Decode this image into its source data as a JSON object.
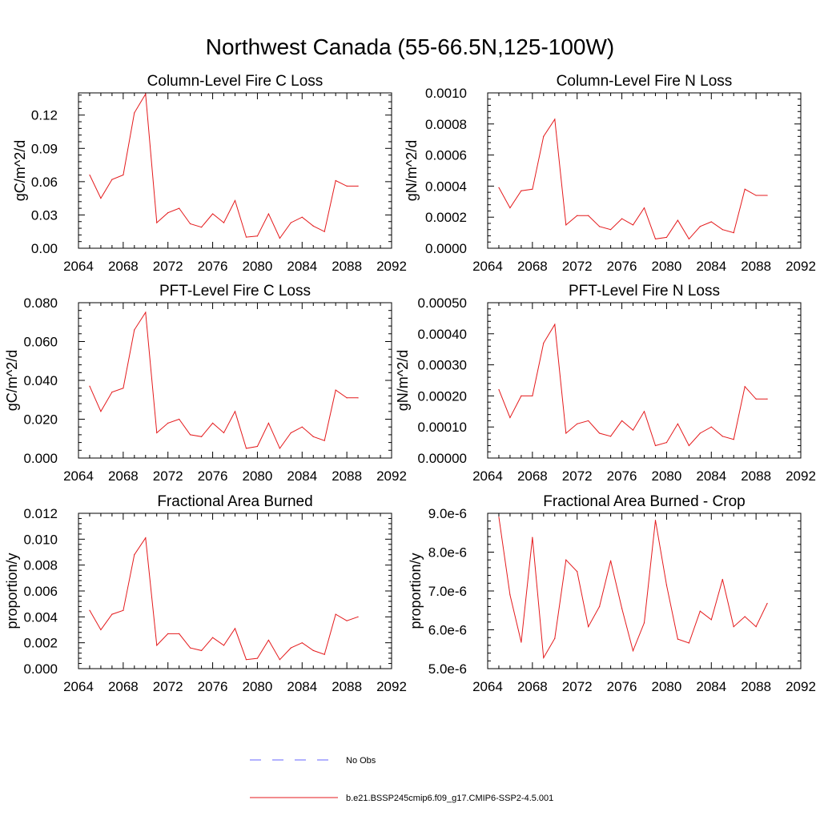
{
  "page_title": "Northwest Canada (55-66.5N,125-100W)",
  "colors": {
    "model": "#e41a1c",
    "obs": "#6666ff",
    "axis": "#000000"
  },
  "legend": {
    "items": [
      {
        "label": "No Obs",
        "color": "#6666ff",
        "style": "dashed"
      },
      {
        "label": "b.e21.BSSP245cmip6.f09_g17.CMIP6-SSP2-4.5.001",
        "color": "#e41a1c",
        "style": "solid"
      }
    ]
  },
  "chart_data": [
    {
      "type": "line",
      "title": "Column-Level Fire C Loss",
      "ylabel": "gC/m^2/d",
      "xlim": [
        2064,
        2092
      ],
      "ylim": [
        0,
        0.14
      ],
      "xticks": [
        2064,
        2068,
        2072,
        2076,
        2080,
        2084,
        2088,
        2092
      ],
      "yticks": [
        0,
        0.03,
        0.06,
        0.09,
        0.12
      ],
      "ytick_labels": [
        "0.00",
        "0.03",
        "0.06",
        "0.09",
        "0.12"
      ],
      "x": [
        2065,
        2066,
        2067,
        2068,
        2069,
        2070,
        2071,
        2072,
        2073,
        2074,
        2075,
        2076,
        2077,
        2078,
        2079,
        2080,
        2081,
        2082,
        2083,
        2084,
        2085,
        2086,
        2087,
        2088,
        2089
      ],
      "series": [
        {
          "name": "b.e21.BSSP245cmip6.f09_g17.CMIP6-SSP2-4.5.001",
          "values": [
            0.066,
            0.045,
            0.062,
            0.066,
            0.122,
            0.139,
            0.023,
            0.032,
            0.036,
            0.022,
            0.019,
            0.031,
            0.023,
            0.043,
            0.01,
            0.011,
            0.031,
            0.009,
            0.023,
            0.028,
            0.02,
            0.015,
            0.061,
            0.056,
            0.056
          ]
        }
      ]
    },
    {
      "type": "line",
      "title": "Column-Level Fire N Loss",
      "ylabel": "gN/m^2/d",
      "xlim": [
        2064,
        2092
      ],
      "ylim": [
        0,
        0.001
      ],
      "xticks": [
        2064,
        2068,
        2072,
        2076,
        2080,
        2084,
        2088,
        2092
      ],
      "yticks": [
        0,
        0.0002,
        0.0004,
        0.0006,
        0.0008,
        0.001
      ],
      "ytick_labels": [
        "0.0000",
        "0.0002",
        "0.0004",
        "0.0006",
        "0.0008",
        "0.0010"
      ],
      "x": [
        2065,
        2066,
        2067,
        2068,
        2069,
        2070,
        2071,
        2072,
        2073,
        2074,
        2075,
        2076,
        2077,
        2078,
        2079,
        2080,
        2081,
        2082,
        2083,
        2084,
        2085,
        2086,
        2087,
        2088,
        2089
      ],
      "series": [
        {
          "name": "b.e21.BSSP245cmip6.f09_g17.CMIP6-SSP2-4.5.001",
          "values": [
            0.00039,
            0.00026,
            0.00037,
            0.00038,
            0.00072,
            0.00083,
            0.00015,
            0.00021,
            0.00021,
            0.00014,
            0.00012,
            0.00019,
            0.00015,
            0.00026,
            6e-05,
            7e-05,
            0.00018,
            6e-05,
            0.00014,
            0.00017,
            0.00012,
            0.0001,
            0.00038,
            0.00034,
            0.00034
          ]
        }
      ]
    },
    {
      "type": "line",
      "title": "PFT-Level Fire C Loss",
      "ylabel": "gC/m^2/d",
      "xlim": [
        2064,
        2092
      ],
      "ylim": [
        0,
        0.08
      ],
      "xticks": [
        2064,
        2068,
        2072,
        2076,
        2080,
        2084,
        2088,
        2092
      ],
      "yticks": [
        0,
        0.02,
        0.04,
        0.06,
        0.08
      ],
      "ytick_labels": [
        "0.000",
        "0.020",
        "0.040",
        "0.060",
        "0.080"
      ],
      "x": [
        2065,
        2066,
        2067,
        2068,
        2069,
        2070,
        2071,
        2072,
        2073,
        2074,
        2075,
        2076,
        2077,
        2078,
        2079,
        2080,
        2081,
        2082,
        2083,
        2084,
        2085,
        2086,
        2087,
        2088,
        2089
      ],
      "series": [
        {
          "name": "b.e21.BSSP245cmip6.f09_g17.CMIP6-SSP2-4.5.001",
          "values": [
            0.037,
            0.024,
            0.034,
            0.036,
            0.066,
            0.075,
            0.013,
            0.018,
            0.02,
            0.012,
            0.011,
            0.018,
            0.013,
            0.024,
            0.005,
            0.006,
            0.018,
            0.005,
            0.013,
            0.016,
            0.011,
            0.009,
            0.035,
            0.031,
            0.031
          ]
        }
      ]
    },
    {
      "type": "line",
      "title": "PFT-Level Fire N Loss",
      "ylabel": "gN/m^2/d",
      "xlim": [
        2064,
        2092
      ],
      "ylim": [
        0,
        0.0005
      ],
      "xticks": [
        2064,
        2068,
        2072,
        2076,
        2080,
        2084,
        2088,
        2092
      ],
      "yticks": [
        0,
        0.0001,
        0.0002,
        0.0003,
        0.0004,
        0.0005
      ],
      "ytick_labels": [
        "0.00000",
        "0.00010",
        "0.00020",
        "0.00030",
        "0.00040",
        "0.00050"
      ],
      "x": [
        2065,
        2066,
        2067,
        2068,
        2069,
        2070,
        2071,
        2072,
        2073,
        2074,
        2075,
        2076,
        2077,
        2078,
        2079,
        2080,
        2081,
        2082,
        2083,
        2084,
        2085,
        2086,
        2087,
        2088,
        2089
      ],
      "series": [
        {
          "name": "b.e21.BSSP245cmip6.f09_g17.CMIP6-SSP2-4.5.001",
          "values": [
            0.00022,
            0.00013,
            0.0002,
            0.0002,
            0.00037,
            0.00043,
            8e-05,
            0.00011,
            0.00012,
            8e-05,
            7e-05,
            0.00012,
            9e-05,
            0.00015,
            4e-05,
            5e-05,
            0.00011,
            4e-05,
            8e-05,
            0.0001,
            7e-05,
            6e-05,
            0.00023,
            0.00019,
            0.00019
          ]
        }
      ]
    },
    {
      "type": "line",
      "title": "Fractional Area Burned",
      "ylabel": "proportion/y",
      "xlim": [
        2064,
        2092
      ],
      "ylim": [
        0,
        0.012
      ],
      "xticks": [
        2064,
        2068,
        2072,
        2076,
        2080,
        2084,
        2088,
        2092
      ],
      "yticks": [
        0,
        0.002,
        0.004,
        0.006,
        0.008,
        0.01,
        0.012
      ],
      "ytick_labels": [
        "0.000",
        "0.002",
        "0.004",
        "0.006",
        "0.008",
        "0.010",
        "0.012"
      ],
      "x": [
        2065,
        2066,
        2067,
        2068,
        2069,
        2070,
        2071,
        2072,
        2073,
        2074,
        2075,
        2076,
        2077,
        2078,
        2079,
        2080,
        2081,
        2082,
        2083,
        2084,
        2085,
        2086,
        2087,
        2088,
        2089
      ],
      "series": [
        {
          "name": "b.e21.BSSP245cmip6.f09_g17.CMIP6-SSP2-4.5.001",
          "values": [
            0.0045,
            0.003,
            0.0042,
            0.0045,
            0.0088,
            0.0101,
            0.0018,
            0.0027,
            0.0027,
            0.0016,
            0.0014,
            0.0024,
            0.0018,
            0.0031,
            0.0007,
            0.0008,
            0.0022,
            0.0007,
            0.0016,
            0.002,
            0.0014,
            0.0011,
            0.0042,
            0.0037,
            0.004
          ]
        }
      ]
    },
    {
      "type": "line",
      "title": "Fractional Area Burned - Crop",
      "ylabel": "proportion/y",
      "xlim": [
        2064,
        2092
      ],
      "ylim": [
        5e-06,
        9e-06
      ],
      "xticks": [
        2064,
        2068,
        2072,
        2076,
        2080,
        2084,
        2088,
        2092
      ],
      "yticks": [
        5e-06,
        6e-06,
        7e-06,
        8e-06,
        9e-06
      ],
      "ytick_labels": [
        "5.0e-6",
        "6.0e-6",
        "7.0e-6",
        "8.0e-6",
        "9.0e-6"
      ],
      "x": [
        2065,
        2066,
        2067,
        2068,
        2069,
        2070,
        2071,
        2072,
        2073,
        2074,
        2075,
        2076,
        2077,
        2078,
        2079,
        2080,
        2081,
        2082,
        2083,
        2084,
        2085,
        2086,
        2087,
        2088,
        2089
      ],
      "series": [
        {
          "name": "b.e21.BSSP245cmip6.f09_g17.CMIP6-SSP2-4.5.001",
          "values": [
            8.9e-06,
            6.9e-06,
            5.68e-06,
            8.38e-06,
            5.28e-06,
            5.78e-06,
            7.8e-06,
            7.5e-06,
            6.08e-06,
            6.6e-06,
            7.78e-06,
            6.55e-06,
            5.46e-06,
            6.18e-06,
            8.82e-06,
            7.15e-06,
            5.76e-06,
            5.66e-06,
            6.48e-06,
            6.26e-06,
            7.3e-06,
            6.08e-06,
            6.34e-06,
            6.08e-06,
            6.68e-06
          ]
        }
      ]
    }
  ]
}
